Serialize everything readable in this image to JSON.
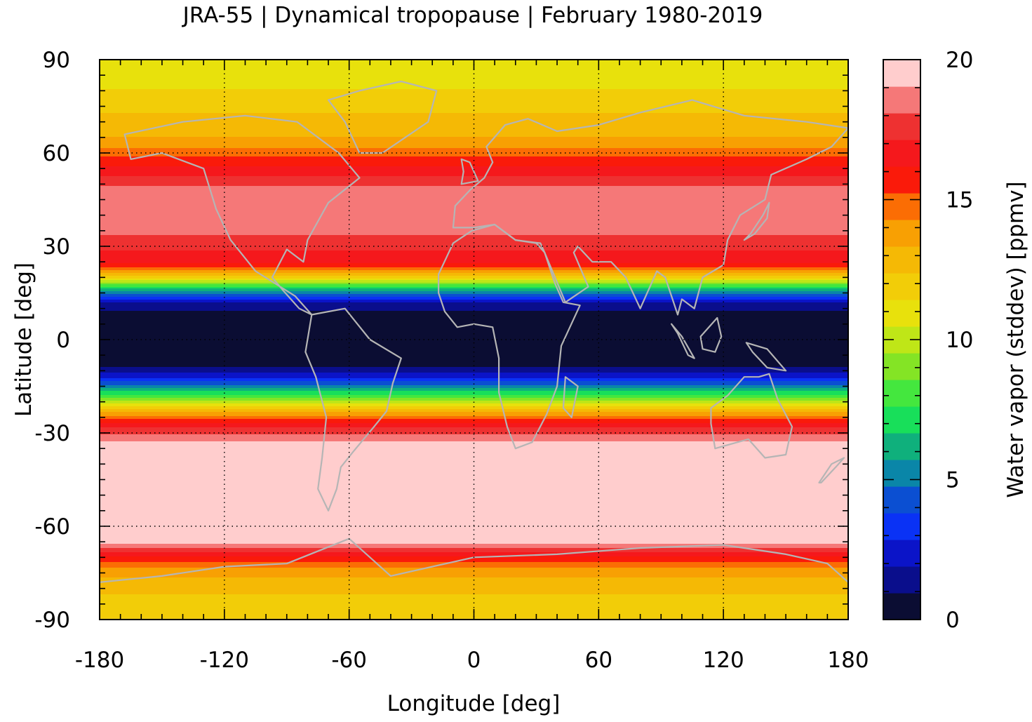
{
  "chart_data": {
    "type": "heatmap",
    "title": "JRA-55 | Dynamical tropopause | February 1980-2019",
    "xlabel": "Longitude [deg]",
    "ylabel": "Latitude [deg]",
    "colorbar_label": "Water vapor (stddev) [ppmv]",
    "xlim": [
      -180,
      180
    ],
    "ylim": [
      -90,
      90
    ],
    "xticks": [
      -180,
      -120,
      -60,
      0,
      60,
      120,
      180
    ],
    "yticks": [
      -90,
      -60,
      -30,
      0,
      30,
      60,
      90
    ],
    "colorbar_range": [
      0,
      20
    ],
    "colorbar_ticks": [
      0,
      5,
      10,
      15,
      20
    ],
    "grid": true,
    "colormap": [
      "#0b0d33",
      "#0a0e8c",
      "#0b14c8",
      "#0a32f5",
      "#0b4fd2",
      "#0a86a8",
      "#0fb07c",
      "#18df5a",
      "#44e73e",
      "#84e425",
      "#bfe617",
      "#e8e10c",
      "#f2cd08",
      "#f5b905",
      "#f8a003",
      "#fb6d04",
      "#fa1a0a",
      "#f5181c",
      "#ee3131",
      "#f57878",
      "#ffcdcd"
    ],
    "zonal_profile": [
      {
        "lat": 88,
        "value": 10.5
      },
      {
        "lat": 80,
        "value": 11.5
      },
      {
        "lat": 72,
        "value": 12.5
      },
      {
        "lat": 64,
        "value": 13.5
      },
      {
        "lat": 58,
        "value": 15.5
      },
      {
        "lat": 50,
        "value": 18.0
      },
      {
        "lat": 42,
        "value": 19.0
      },
      {
        "lat": 36,
        "value": 18.5
      },
      {
        "lat": 30,
        "value": 17.5
      },
      {
        "lat": 24,
        "value": 16.0
      },
      {
        "lat": 20,
        "value": 12.0
      },
      {
        "lat": 16,
        "value": 6.0
      },
      {
        "lat": 12,
        "value": 2.0
      },
      {
        "lat": 8,
        "value": 0.5
      },
      {
        "lat": 0,
        "value": 0.3
      },
      {
        "lat": -8,
        "value": 0.5
      },
      {
        "lat": -12,
        "value": 2.5
      },
      {
        "lat": -16,
        "value": 6.0
      },
      {
        "lat": -20,
        "value": 10.0
      },
      {
        "lat": -24,
        "value": 14.0
      },
      {
        "lat": -28,
        "value": 17.0
      },
      {
        "lat": -34,
        "value": 19.5
      },
      {
        "lat": -50,
        "value": 20.0
      },
      {
        "lat": -62,
        "value": 20.0
      },
      {
        "lat": -66,
        "value": 19.0
      },
      {
        "lat": -70,
        "value": 16.0
      },
      {
        "lat": -74,
        "value": 14.0
      },
      {
        "lat": -80,
        "value": 12.5
      },
      {
        "lat": -88,
        "value": 12.0
      }
    ]
  }
}
